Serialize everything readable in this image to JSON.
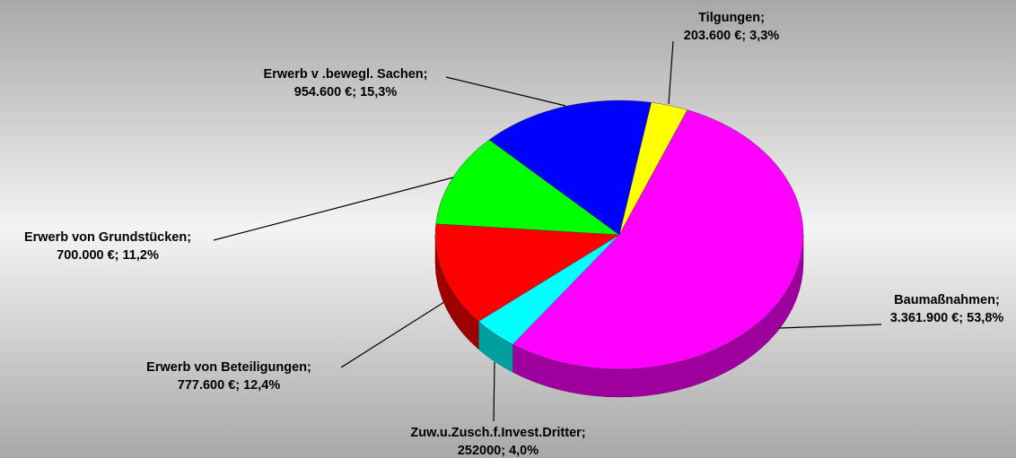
{
  "chart_data": {
    "type": "pie3d",
    "categories": [
      "Tilgungen;",
      "Baumaßnahmen;",
      "Zuw.u.Zusch.f.Invest.Dritter;",
      "Erwerb von Beteiligungen;",
      "Erwerb von Grundstücken;",
      "Erwerb v .bewegl. Sachen;"
    ],
    "values": [
      203600,
      3361900,
      252000,
      777600,
      700000,
      954600
    ],
    "value_labels": [
      "203.600 €; 3,3%",
      "3.361.900 €; 53,8%",
      "252000; 4,0%",
      "777.600 €; 12,4%",
      "700.000 €; 11,2%",
      "954.600 €; 15,3%"
    ],
    "colors": [
      "#ffff00",
      "#ff00ff",
      "#00ffff",
      "#ff0000",
      "#00ff00",
      "#0000ff"
    ]
  }
}
